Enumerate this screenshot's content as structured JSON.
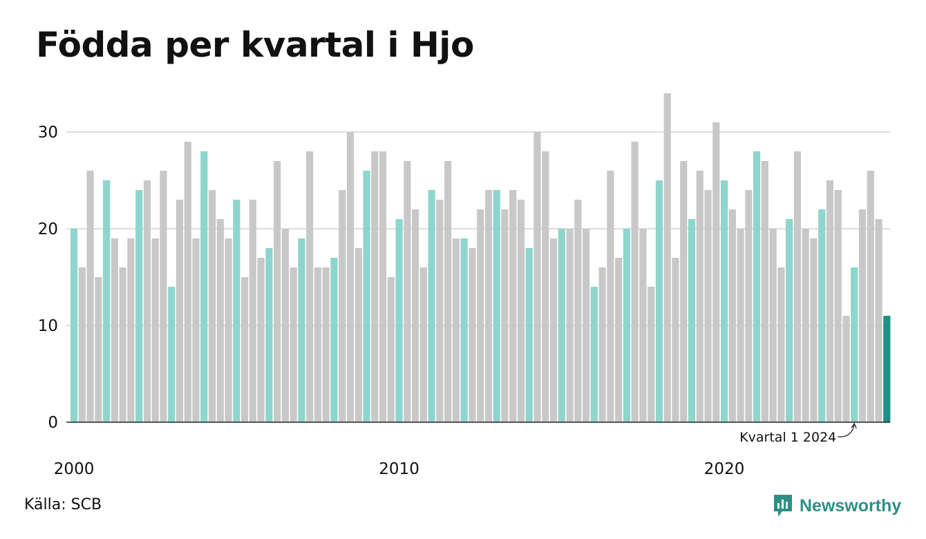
{
  "title": "Födda per kvartal i Hjo",
  "source": "Källa: SCB",
  "brand": {
    "name": "Newsworthy",
    "icon": "newsworthy-logo-icon"
  },
  "colors": {
    "q1": "#8dd5cd",
    "other": "#c8c8c8",
    "latest": "#1e9085",
    "grid": "#dddddd",
    "axis": "#222222",
    "text": "#111111"
  },
  "chart_data": {
    "type": "bar",
    "title": "Födda per kvartal i Hjo",
    "xlabel": "",
    "ylabel": "",
    "ylim": [
      0,
      35
    ],
    "yticks": [
      0,
      10,
      20,
      30
    ],
    "xtick_labels": [
      "2000",
      "2010",
      "2020"
    ],
    "grid": true,
    "legend": "none",
    "start_year": 2000,
    "start_quarter": 1,
    "highlight": "first quarter of each year",
    "annotation": {
      "text": "Kvartal 1 2024",
      "target": "2024 Q1"
    },
    "values": [
      20,
      16,
      26,
      15,
      25,
      19,
      16,
      19,
      24,
      25,
      19,
      26,
      14,
      23,
      29,
      19,
      28,
      24,
      21,
      19,
      23,
      15,
      23,
      17,
      18,
      27,
      20,
      16,
      19,
      28,
      16,
      16,
      17,
      24,
      30,
      18,
      26,
      28,
      28,
      15,
      21,
      27,
      22,
      16,
      24,
      23,
      27,
      19,
      19,
      18,
      22,
      24,
      24,
      22,
      24,
      23,
      18,
      30,
      28,
      19,
      20,
      20,
      23,
      20,
      14,
      16,
      26,
      17,
      20,
      29,
      20,
      14,
      25,
      34,
      17,
      27,
      21,
      26,
      24,
      31,
      25,
      22,
      20,
      24,
      28,
      27,
      20,
      16,
      21,
      28,
      20,
      19,
      22,
      25,
      24,
      11,
      16,
      22,
      26,
      21,
      11
    ]
  }
}
